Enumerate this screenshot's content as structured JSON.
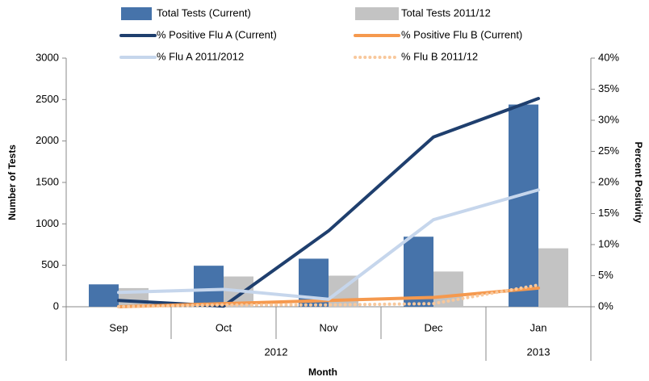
{
  "chart_data": {
    "type": "bar-line",
    "categories": [
      "Sep",
      "Oct",
      "Nov",
      "Dec",
      "Jan"
    ],
    "groups": [
      {
        "label": "2012",
        "count": 4
      },
      {
        "label": "2013",
        "count": 1
      }
    ],
    "xlabel": "Month",
    "ylabel": "Number of Tests",
    "y2label": "Percent Positivity",
    "ylim": [
      0,
      3000
    ],
    "yticks": [
      0,
      500,
      1000,
      1500,
      2000,
      2500,
      3000
    ],
    "y2lim": [
      0,
      40
    ],
    "y2ticks": [
      {
        "value": 0,
        "label": "0%"
      },
      {
        "value": 5,
        "label": "5%"
      },
      {
        "value": 10,
        "label": "10%"
      },
      {
        "value": 15,
        "label": "15%"
      },
      {
        "value": 20,
        "label": "20%"
      },
      {
        "value": 25,
        "label": "25%"
      },
      {
        "value": 30,
        "label": "30%"
      },
      {
        "value": 35,
        "label": "35%"
      },
      {
        "value": 40,
        "label": "40%"
      }
    ],
    "grid": false,
    "series": [
      {
        "name": "Total Tests (Current)",
        "type": "bar",
        "color": "#4673aa",
        "values": [
          270,
          495,
          580,
          845,
          2440
        ]
      },
      {
        "name": "Total Tests 2011/12",
        "type": "bar",
        "color": "#c3c3c3",
        "values": [
          225,
          365,
          375,
          425,
          705
        ]
      },
      {
        "name": "% Positive Flu A (Current)",
        "type": "line",
        "axis": "y2",
        "color": "#1f3f6e",
        "style": "solid",
        "values": [
          1,
          0.1,
          12.2,
          27.3,
          33.5
        ]
      },
      {
        "name": "% Positive Flu B (Current)",
        "type": "line",
        "axis": "y2",
        "color": "#f5994e",
        "style": "solid",
        "values": [
          0,
          0.5,
          1,
          1.5,
          3
        ]
      },
      {
        "name": "% Flu A 2011/2012",
        "type": "line",
        "axis": "y2",
        "color": "#c6d6ec",
        "style": "solid",
        "values": [
          2.3,
          2.8,
          1.2,
          14,
          18.8
        ]
      },
      {
        "name": "% Flu B 2011/12",
        "type": "line",
        "axis": "y2",
        "color": "#f8c89c",
        "style": "dotted",
        "values": [
          0,
          0.3,
          0.3,
          0.5,
          3.5
        ]
      }
    ]
  }
}
